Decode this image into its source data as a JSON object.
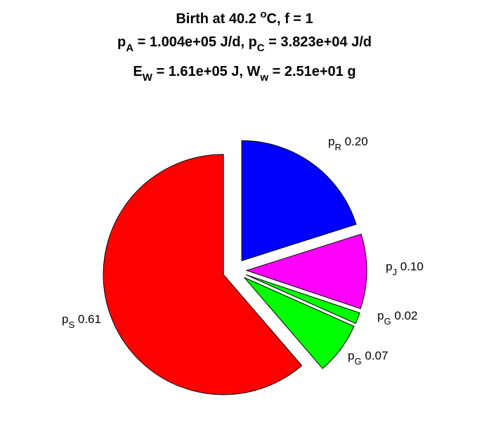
{
  "chart_data": {
    "type": "pie",
    "title": {
      "line1": {
        "text": "Birth at 40.2 ",
        "sup": "o",
        "tail": "C, f = 1"
      },
      "line2": {
        "a": "p",
        "a_sub": "A",
        "b": " = 1.004e+05 J/d, p",
        "b_sub": "C",
        "c": " = 3.823e+04 J/d"
      },
      "line3": {
        "a": "E",
        "a_sub": "W",
        "b": " = 1.61e+05 J, W",
        "b_sub": "w",
        "c": " = 2.51e+01 g"
      }
    },
    "slices": [
      {
        "label": "p",
        "sub": "R",
        "value_text": "0.20",
        "value": 0.2,
        "color": "#0000ff",
        "exploded": true
      },
      {
        "label": "p",
        "sub": "J",
        "value_text": "0.10",
        "value": 0.1,
        "color": "#ff00ff",
        "exploded": true
      },
      {
        "label": "p",
        "sub": "G",
        "value_text": "0.02",
        "value": 0.015,
        "color": "#00ff00",
        "exploded": true
      },
      {
        "label": "p",
        "sub": "G",
        "value_text": "0.07",
        "value": 0.07,
        "color": "#00ff00",
        "exploded": true
      },
      {
        "label": "p",
        "sub": "S",
        "value_text": "0.61",
        "value": 0.61,
        "color": "#ff0000",
        "exploded": true
      }
    ]
  }
}
